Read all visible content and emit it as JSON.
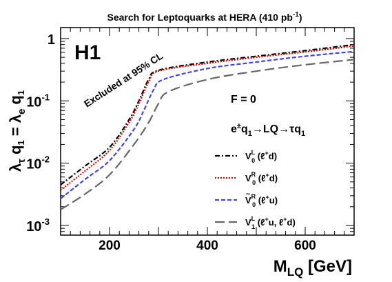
{
  "chart_data": {
    "type": "line",
    "title": "Search for Leptoquarks at HERA (410 pb-1)",
    "title_base": "Search for Leptoquarks at HERA (410 pb",
    "title_sup": "-1",
    "title_end": ")",
    "xlabel_main": "M",
    "xlabel_sub": "LQ",
    "xlabel_unit": "[GeV]",
    "ylabel": "λτq1 = λeq1",
    "xlim": [
      100,
      700
    ],
    "ylim": [
      0.0007,
      1.5
    ],
    "yscale": "log",
    "x_ticks": [
      "200",
      "400",
      "600"
    ],
    "x_tick_values": [
      200,
      400,
      600
    ],
    "y_tick_values": [
      0.001,
      0.01,
      0.1,
      1
    ],
    "y_tick_labels": [
      {
        "base": "10",
        "exp": "-3"
      },
      {
        "base": "10",
        "exp": "-2"
      },
      {
        "base": "10",
        "exp": "-1"
      },
      {
        "base": "1",
        "exp": ""
      }
    ],
    "experiment_label": "H1",
    "excluded_label": "Excluded at 95% CL",
    "f_label": "F = 0",
    "process_label": "e±q1→LQ→τq1",
    "legend_position": "bottom-right",
    "series": [
      {
        "name": "V0L (ℓ+d)",
        "color": "#000000",
        "dash": "dashdot",
        "x": [
          100,
          150,
          200,
          240,
          260,
          280,
          300,
          400,
          500,
          600,
          700
        ],
        "y": [
          0.0045,
          0.009,
          0.018,
          0.05,
          0.1,
          0.22,
          0.31,
          0.42,
          0.52,
          0.64,
          0.8
        ]
      },
      {
        "name": "V0R (ℓ+d)",
        "color": "#dd0000",
        "dash": "dotted",
        "x": [
          100,
          150,
          200,
          240,
          260,
          280,
          300,
          400,
          500,
          600,
          700
        ],
        "y": [
          0.0037,
          0.0075,
          0.016,
          0.045,
          0.09,
          0.2,
          0.3,
          0.4,
          0.5,
          0.61,
          0.76
        ]
      },
      {
        "name": "Ṽ0R (ℓ+u)",
        "color": "#4444dd",
        "dash": "dashed",
        "x": [
          100,
          150,
          200,
          250,
          270,
          290,
          310,
          400,
          500,
          600,
          700
        ],
        "y": [
          0.0027,
          0.0055,
          0.011,
          0.035,
          0.07,
          0.15,
          0.22,
          0.33,
          0.42,
          0.52,
          0.62
        ]
      },
      {
        "name": "V1L (ℓ+u, ℓ+d)",
        "color": "#666666",
        "dash": "longdash",
        "x": [
          100,
          150,
          200,
          250,
          280,
          300,
          320,
          400,
          500,
          600,
          700
        ],
        "y": [
          0.0018,
          0.0032,
          0.0065,
          0.02,
          0.045,
          0.09,
          0.14,
          0.22,
          0.3,
          0.38,
          0.46
        ]
      }
    ],
    "legend": [
      {
        "main": "V",
        "sup": "L",
        "sub": "0",
        "tilde": false,
        "text": " (ℓ",
        "sup2": "+",
        "rest": "d)"
      },
      {
        "main": "V",
        "sup": "R",
        "sub": "0",
        "tilde": false,
        "text": " (ℓ",
        "sup2": "+",
        "rest": "d)"
      },
      {
        "main": "V",
        "sup": "R",
        "sub": "0",
        "tilde": true,
        "text": " (ℓ",
        "sup2": "+",
        "rest": "u)"
      },
      {
        "main": "V",
        "sup": "L",
        "sub": "1",
        "tilde": false,
        "text": " (ℓ",
        "sup2": "+",
        "rest": "u, ℓ",
        "sup3": "+",
        "rest2": "d)"
      }
    ]
  }
}
